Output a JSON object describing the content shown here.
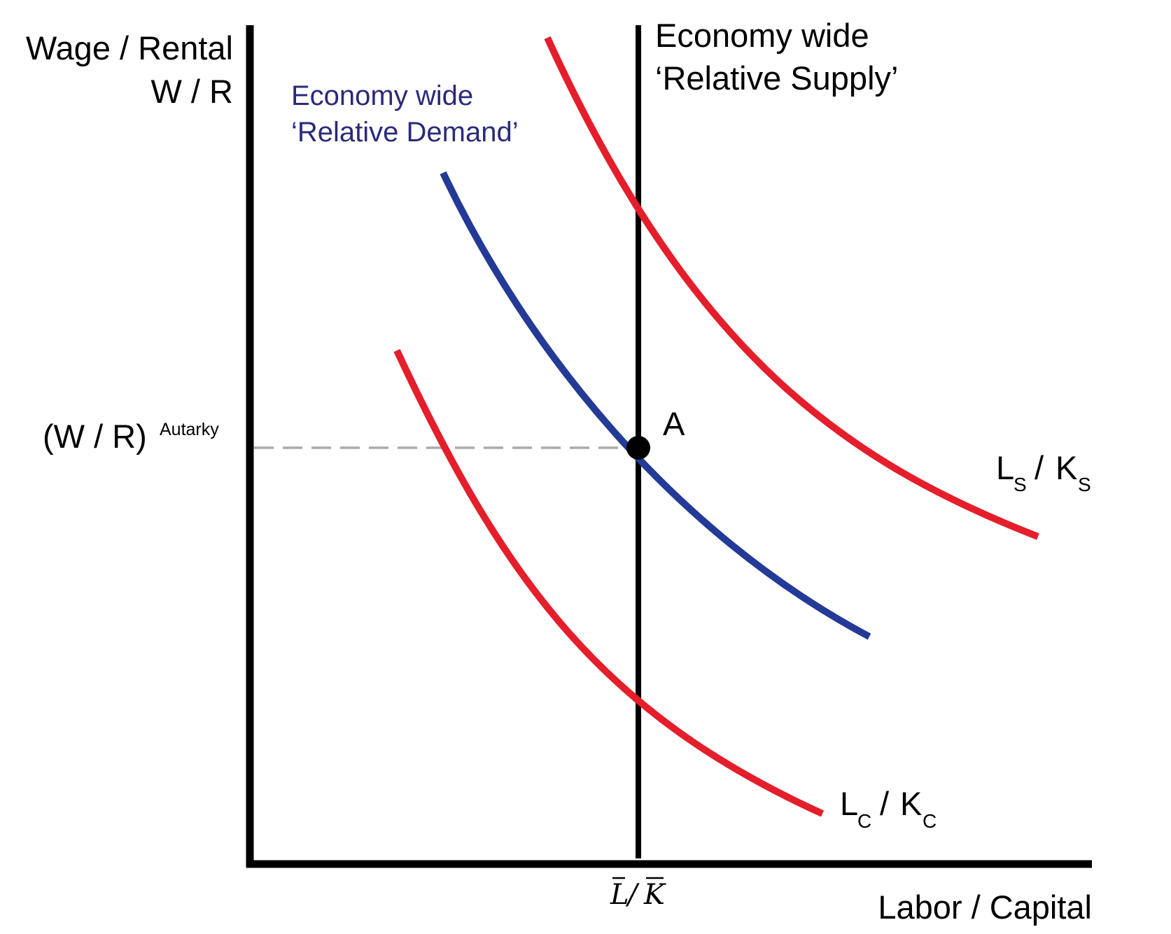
{
  "axes": {
    "y_label_line1": "Wage / Rental",
    "y_label_line2": "W / R",
    "x_label": "Labor / Capital"
  },
  "wr_autarky": {
    "main": "(W / R)",
    "superscript": "Autarky"
  },
  "supply_line": {
    "label_line1": "Economy wide",
    "label_line2": "‘Relative Supply’",
    "tick_label": "L/K",
    "tick_label_L": "L",
    "tick_label_slash": "/",
    "tick_label_K": "K"
  },
  "demand_curve": {
    "label_line1": "Economy wide",
    "label_line2": "‘Relative Demand’"
  },
  "ls_ks": {
    "L": "L",
    "L_sub": "S",
    "slash": "/",
    "K": "K",
    "K_sub": "S"
  },
  "lc_kc": {
    "L": "L",
    "L_sub": "C",
    "slash": "/",
    "K": "K",
    "K_sub": "C"
  },
  "point_a": {
    "label": "A"
  },
  "colors": {
    "axis": "#000000",
    "red_curves": "#e41e2b",
    "blue_curve": "#233a97",
    "blue_text": "#2b2a7a",
    "dashed": "#aaaaaa"
  }
}
